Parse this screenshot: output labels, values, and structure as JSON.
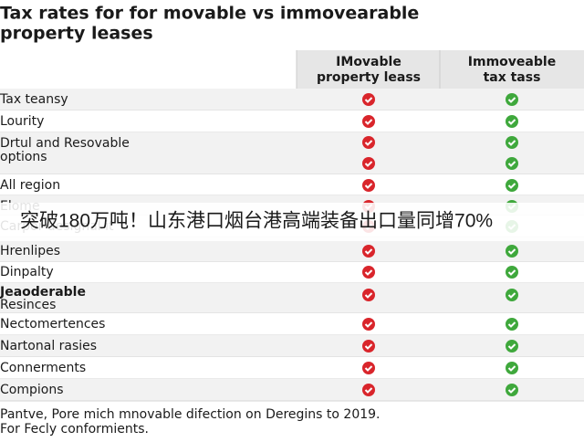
{
  "title_lines": [
    "Tax rates for for movable vs immovearable",
    "property leases"
  ],
  "header": [
    [
      "IMovable",
      "property leass"
    ],
    [
      "Immoveable",
      "tax tass"
    ]
  ],
  "rows": [
    [
      "Tax teansy"
    ],
    [
      "Lourity"
    ],
    [
      "Drtul and Resovable",
      "options"
    ],
    [
      "All region"
    ],
    [
      "Elome"
    ],
    [
      "Carpor designal it"
    ],
    [
      "Hrenlipes"
    ],
    [
      "Dinpalty"
    ],
    [
      "Jeaoderable",
      "Resinces"
    ],
    [
      "Nectomertences"
    ],
    [
      "Nartonal rasies"
    ],
    [
      "Connerments"
    ],
    [
      "Compions"
    ]
  ],
  "footer_lines": [
    "Pantve, Pore mich mnovable difection on Deregins to 2019.",
    "For Fecly conformients."
  ],
  "banner": "突破180万吨！山东港口烟台港高端装备出口量同增70%"
}
